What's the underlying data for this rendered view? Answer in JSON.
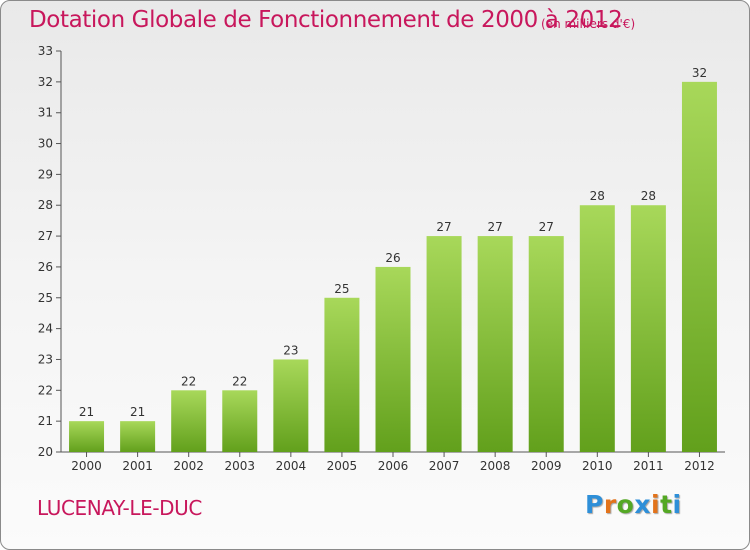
{
  "header": {
    "title": "Dotation Globale de Fonctionnement de 2000 à 2012",
    "unit": "(en milliers d'€)"
  },
  "footer": {
    "commune": "LUCENAY-LE-DUC",
    "logo": "Proxiti"
  },
  "colors": {
    "title": "#c8175c",
    "bar_light": "#a8d85a",
    "bar_dark": "#62a01c",
    "logo_letters": [
      "#2e8fd8",
      "#e2731b",
      "#54a824",
      "#2e8fd8",
      "#e2731b",
      "#54a824",
      "#2e8fd8"
    ]
  },
  "chart_data": {
    "type": "bar",
    "title": "Dotation Globale de Fonctionnement de 2000 à 2012",
    "subtitle": "(en milliers d'€)",
    "xlabel": "",
    "ylabel": "",
    "categories": [
      "2000",
      "2001",
      "2002",
      "2003",
      "2004",
      "2005",
      "2006",
      "2007",
      "2008",
      "2009",
      "2010",
      "2011",
      "2012"
    ],
    "values": [
      21,
      21,
      22,
      22,
      23,
      25,
      26,
      27,
      27,
      27,
      28,
      28,
      32
    ],
    "data_labels": [
      "21",
      "21",
      "22",
      "22",
      "23",
      "25",
      "26",
      "27",
      "27",
      "27",
      "28",
      "28",
      "32"
    ],
    "ylim": [
      20,
      33
    ],
    "y_ticks": [
      20,
      21,
      22,
      23,
      24,
      25,
      26,
      27,
      28,
      29,
      30,
      31,
      32,
      33
    ],
    "grid": false,
    "legend": "none"
  }
}
